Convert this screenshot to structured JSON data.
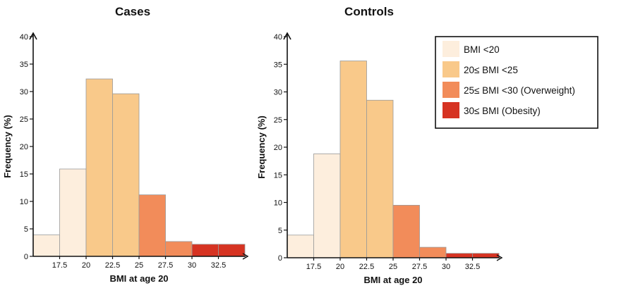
{
  "chart_data": [
    {
      "type": "bar",
      "title": "Cases",
      "xlabel": "BMI at age 20",
      "ylabel": "Frequency (%)",
      "ylim": [
        0,
        40
      ],
      "yticks": [
        0,
        5,
        10,
        15,
        20,
        25,
        30,
        35,
        40
      ],
      "xlim": [
        15,
        35
      ],
      "xticks": [
        "17.5",
        "20",
        "22.5",
        "25",
        "27.5",
        "30",
        "32.5"
      ],
      "bins": [
        {
          "from": 15,
          "to": 17.5,
          "value": 3.9,
          "category": "BMI <20"
        },
        {
          "from": 17.5,
          "to": 20,
          "value": 15.9,
          "category": "BMI <20"
        },
        {
          "from": 20,
          "to": 22.5,
          "value": 32.3,
          "category": "20≤ BMI <25"
        },
        {
          "from": 22.5,
          "to": 25,
          "value": 29.6,
          "category": "20≤ BMI <25"
        },
        {
          "from": 25,
          "to": 27.5,
          "value": 11.2,
          "category": "25≤ BMI <30 (Overweight)"
        },
        {
          "from": 27.5,
          "to": 30,
          "value": 2.7,
          "category": "25≤ BMI <30 (Overweight)"
        },
        {
          "from": 30,
          "to": 32.5,
          "value": 2.2,
          "category": "30≤ BMI (Obesity)"
        },
        {
          "from": 32.5,
          "to": 35,
          "value": 2.2,
          "category": "30≤ BMI (Obesity)"
        }
      ]
    },
    {
      "type": "bar",
      "title": "Controls",
      "xlabel": "BMI at age 20",
      "ylabel": "Frequency (%)",
      "ylim": [
        0,
        40
      ],
      "yticks": [
        0,
        5,
        10,
        15,
        20,
        25,
        30,
        35,
        40
      ],
      "xlim": [
        15,
        35
      ],
      "xticks": [
        "17.5",
        "20",
        "22.5",
        "25",
        "27.5",
        "30",
        "32.5"
      ],
      "bins": [
        {
          "from": 15,
          "to": 17.5,
          "value": 4.1,
          "category": "BMI <20"
        },
        {
          "from": 17.5,
          "to": 20,
          "value": 18.8,
          "category": "BMI <20"
        },
        {
          "from": 20,
          "to": 22.5,
          "value": 35.6,
          "category": "20≤ BMI <25"
        },
        {
          "from": 22.5,
          "to": 25,
          "value": 28.5,
          "category": "20≤ BMI <25"
        },
        {
          "from": 25,
          "to": 27.5,
          "value": 9.5,
          "category": "25≤ BMI <30 (Overweight)"
        },
        {
          "from": 27.5,
          "to": 30,
          "value": 1.9,
          "category": "25≤ BMI <30 (Overweight)"
        },
        {
          "from": 30,
          "to": 32.5,
          "value": 0.8,
          "category": "30≤ BMI (Obesity)"
        },
        {
          "from": 32.5,
          "to": 35,
          "value": 0.8,
          "category": "30≤ BMI (Obesity)"
        }
      ]
    }
  ],
  "legend": {
    "placement": "top-right",
    "entries": [
      {
        "label": "BMI <20",
        "color": "#fdeedd"
      },
      {
        "label": "20≤ BMI <25",
        "color": "#f9c98a"
      },
      {
        "label": "25≤ BMI <30 (Overweight)",
        "color": "#f28c5a"
      },
      {
        "label": "30≤ BMI (Obesity)",
        "color": "#d63322"
      }
    ]
  }
}
